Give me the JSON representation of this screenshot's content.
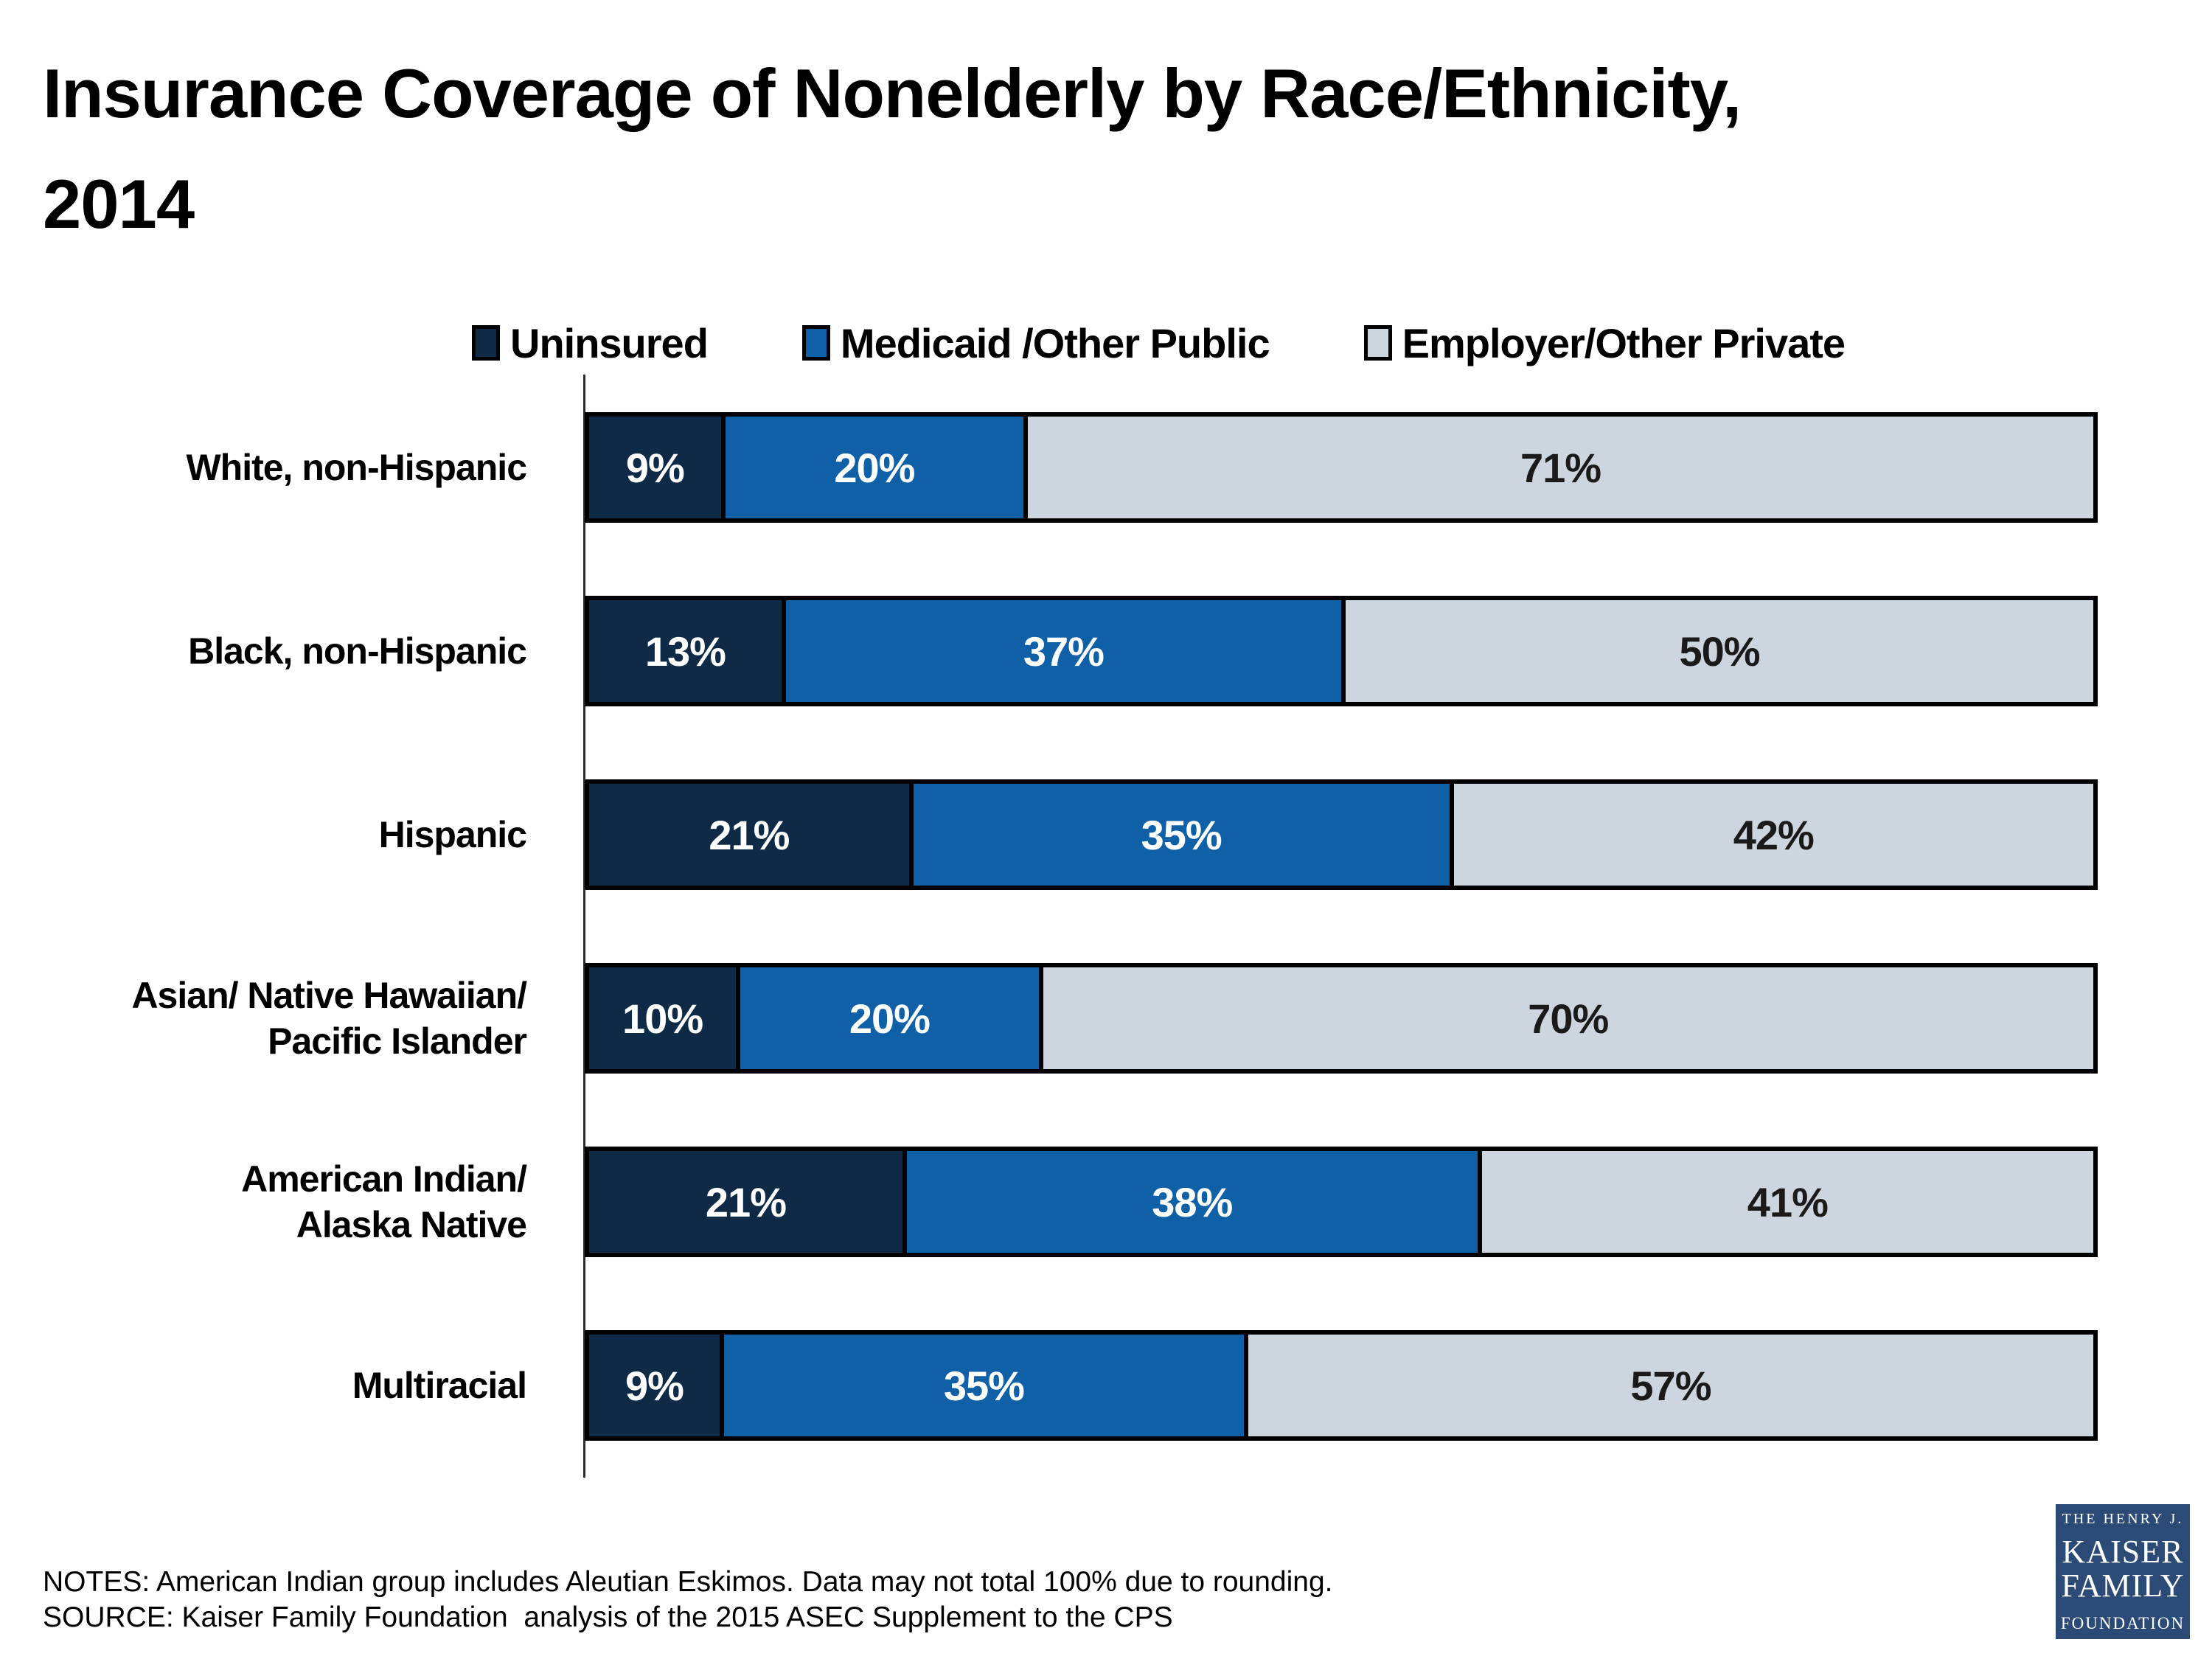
{
  "title": {
    "line1": "Insurance Coverage of Nonelderly by Race/Ethnicity,",
    "line2": "2014"
  },
  "legend_items": [
    {
      "label": "Uninsured",
      "color": "#0E2A47"
    },
    {
      "label": "Medicaid /Other Public",
      "color": "#1060A8"
    },
    {
      "label": "Employer/Other Private",
      "color": "#CDD6DE"
    }
  ],
  "chart_data": {
    "type": "bar",
    "orientation": "horizontal",
    "stacked": true,
    "xlim": [
      0,
      100
    ],
    "value_suffix": "%",
    "grid": false,
    "legend_position": "top",
    "categories": [
      [
        "White, non-Hispanic"
      ],
      [
        "Black, non-Hispanic"
      ],
      [
        "Hispanic"
      ],
      [
        "Asian/ Native Hawaiian/",
        "Pacific Islander"
      ],
      [
        "American Indian/",
        "Alaska Native"
      ],
      [
        "Multiracial"
      ]
    ],
    "series": [
      {
        "name": "Uninsured",
        "color": "#0E2A47",
        "label_color": "#FFFFFF",
        "values": [
          9,
          13,
          21,
          10,
          21,
          9
        ]
      },
      {
        "name": "Medicaid /Other Public",
        "color": "#1060A8",
        "label_color": "#FFFFFF",
        "values": [
          20,
          37,
          35,
          20,
          38,
          35
        ]
      },
      {
        "name": "Employer/Other Private",
        "color": "#CDD6DE",
        "label_color": "#1A1A1A",
        "values": [
          71,
          50,
          42,
          70,
          41,
          57
        ]
      }
    ]
  },
  "footer": {
    "notes": "NOTES: American Indian group includes Aleutian Eskimos. Data may not total 100% due to rounding.",
    "source": "SOURCE: Kaiser Family Foundation  analysis of the 2015 ASEC Supplement to the CPS"
  },
  "logo": {
    "color": "#2B4B76",
    "line1": "THE HENRY J.",
    "line2": "KAISER",
    "line3": "FAMILY",
    "line4": "FOUNDATION"
  }
}
